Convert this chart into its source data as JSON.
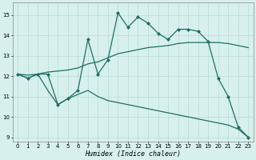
{
  "xlabel": "Humidex (Indice chaleur)",
  "xlim": [
    -0.5,
    23.5
  ],
  "ylim": [
    8.8,
    15.6
  ],
  "yticks": [
    9,
    10,
    11,
    12,
    13,
    14,
    15
  ],
  "xticks": [
    0,
    1,
    2,
    3,
    4,
    5,
    6,
    7,
    8,
    9,
    10,
    11,
    12,
    13,
    14,
    15,
    16,
    17,
    18,
    19,
    20,
    21,
    22,
    23
  ],
  "bg_color": "#d7f0ed",
  "grid_color": "#b8dbd7",
  "line_color": "#1e6e64",
  "line1_x": [
    0,
    1,
    2,
    3,
    4,
    5,
    6,
    7,
    8,
    9,
    10,
    11,
    12,
    13,
    14,
    15,
    16,
    17,
    18,
    19,
    20,
    21,
    22,
    23
  ],
  "line1_y": [
    12.1,
    11.9,
    12.1,
    12.1,
    10.6,
    10.9,
    11.3,
    13.8,
    12.1,
    12.8,
    15.1,
    14.4,
    14.9,
    14.6,
    14.1,
    13.8,
    14.3,
    14.3,
    14.2,
    13.7,
    11.9,
    11.0,
    9.5,
    9.0
  ],
  "line2_x": [
    0,
    1,
    2,
    3,
    4,
    5,
    6,
    7,
    8,
    9,
    10,
    11,
    12,
    13,
    14,
    15,
    16,
    17,
    18,
    19,
    20,
    21,
    22,
    23
  ],
  "line2_y": [
    12.1,
    12.05,
    12.1,
    12.2,
    12.25,
    12.3,
    12.4,
    12.6,
    12.7,
    12.9,
    13.1,
    13.2,
    13.3,
    13.4,
    13.45,
    13.5,
    13.6,
    13.65,
    13.65,
    13.65,
    13.65,
    13.6,
    13.5,
    13.4
  ],
  "line3_x": [
    0,
    1,
    2,
    3,
    4,
    5,
    6,
    7,
    8,
    9,
    10,
    11,
    12,
    13,
    14,
    15,
    16,
    17,
    18,
    19,
    20,
    21,
    22,
    23
  ],
  "line3_y": [
    12.1,
    11.9,
    12.1,
    11.3,
    10.6,
    10.9,
    11.1,
    11.3,
    11.0,
    10.8,
    10.7,
    10.6,
    10.5,
    10.4,
    10.3,
    10.2,
    10.1,
    10.0,
    9.9,
    9.8,
    9.7,
    9.6,
    9.4,
    9.0
  ]
}
